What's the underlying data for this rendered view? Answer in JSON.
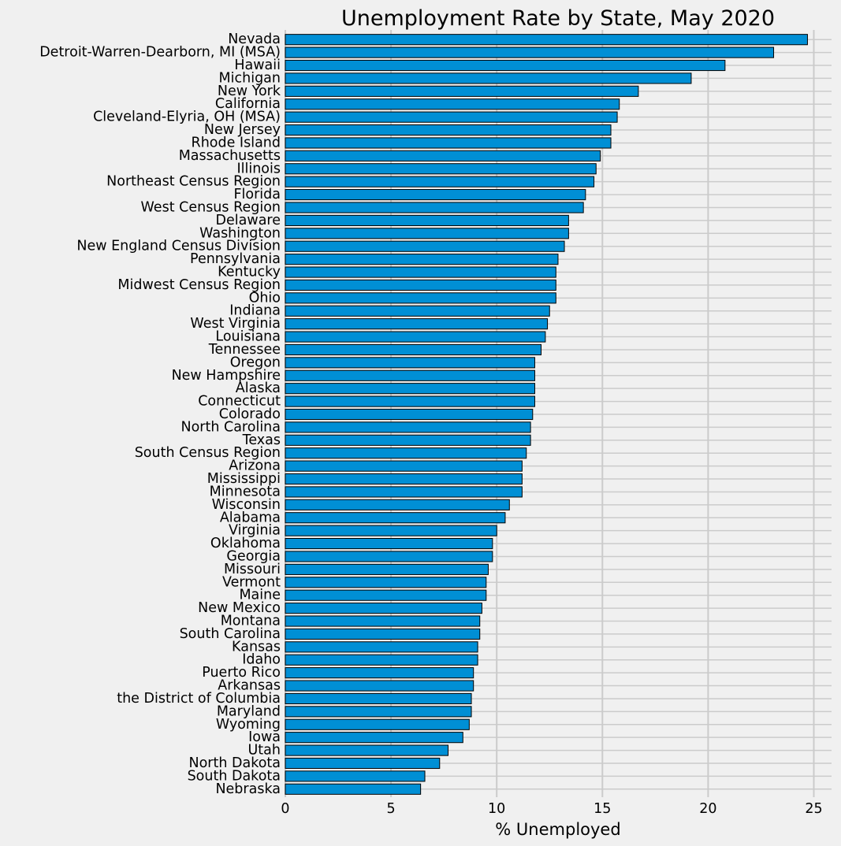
{
  "chart_data": {
    "type": "bar",
    "orientation": "horizontal",
    "title": "Unemployment Rate by State, May 2020",
    "xlabel": "% Unemployed",
    "ylabel": "",
    "xlim": [
      0,
      25.7
    ],
    "xticks": [
      0,
      5,
      10,
      15,
      20,
      25
    ],
    "grid": true,
    "bar_color": "#008fd5",
    "edge_color": "#000000",
    "background": "#f0f0f0",
    "grid_color": "#cbcbcb",
    "categories": [
      "Nevada",
      "Detroit-Warren-Dearborn, MI (MSA)",
      "Hawaii",
      "Michigan",
      "New York",
      "California",
      "Cleveland-Elyria, OH (MSA)",
      "New Jersey",
      "Rhode Island",
      "Massachusetts",
      "Illinois",
      "Northeast Census Region",
      "Florida",
      "West Census Region",
      "Delaware",
      "Washington",
      "New England Census Division",
      "Pennsylvania",
      "Kentucky",
      "Midwest Census Region",
      "Ohio",
      "Indiana",
      "West Virginia",
      "Louisiana",
      "Tennessee",
      "Oregon",
      "New Hampshire",
      "Alaska",
      "Connecticut",
      "Colorado",
      "North Carolina",
      "Texas",
      "South Census Region",
      "Arizona",
      "Mississippi",
      "Minnesota",
      "Wisconsin",
      "Alabama",
      "Virginia",
      "Oklahoma",
      "Georgia",
      "Missouri",
      "Vermont",
      "Maine",
      "New Mexico",
      "Montana",
      "South Carolina",
      "Kansas",
      "Idaho",
      "Puerto Rico",
      "Arkansas",
      "the District of Columbia",
      "Maryland",
      "Wyoming",
      "Iowa",
      "Utah",
      "North Dakota",
      "South Dakota",
      "Nebraska"
    ],
    "values": [
      24.7,
      23.1,
      20.8,
      19.2,
      16.7,
      15.8,
      15.7,
      15.4,
      15.4,
      14.9,
      14.7,
      14.6,
      14.2,
      14.1,
      13.4,
      13.4,
      13.2,
      12.9,
      12.8,
      12.8,
      12.8,
      12.5,
      12.4,
      12.3,
      12.1,
      11.8,
      11.8,
      11.8,
      11.8,
      11.7,
      11.6,
      11.6,
      11.4,
      11.2,
      11.2,
      11.2,
      10.6,
      10.4,
      10.0,
      9.8,
      9.8,
      9.6,
      9.5,
      9.5,
      9.3,
      9.2,
      9.2,
      9.1,
      9.1,
      8.9,
      8.9,
      8.8,
      8.8,
      8.7,
      8.4,
      7.7,
      7.3,
      6.6,
      6.4
    ]
  }
}
